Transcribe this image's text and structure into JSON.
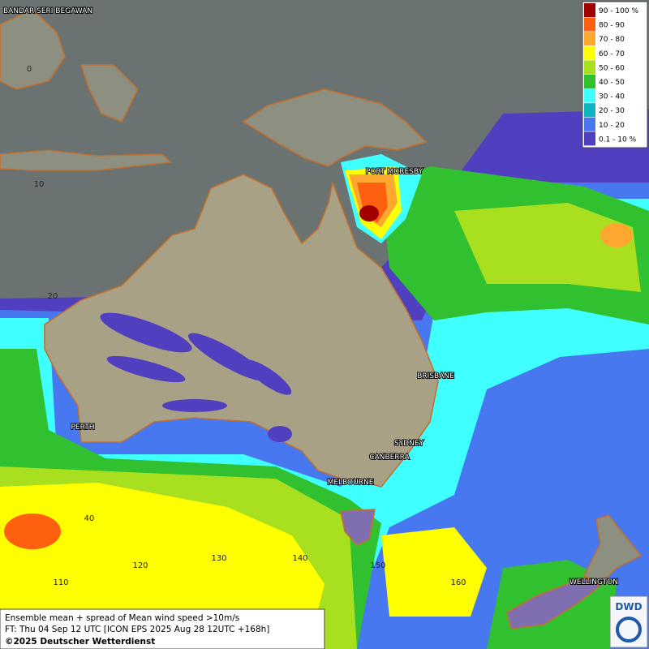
{
  "map": {
    "cities": [
      "BANDAR SERI BEGAWAN",
      "PORT MORESBY",
      "BRISBANE",
      "SYDNEY",
      "CANBERRA",
      "MELBOURNE",
      "PERTH",
      "WELLINGTON"
    ],
    "latitude_labels": [
      "0",
      "10",
      "20",
      "40"
    ],
    "longitude_labels": [
      "110",
      "120",
      "130",
      "140",
      "150",
      "160"
    ],
    "legend": [
      {
        "label": "90 - 100 %",
        "color": "#a00000"
      },
      {
        "label": "80 - 90",
        "color": "#ff6010"
      },
      {
        "label": "70 - 80",
        "color": "#ffa830"
      },
      {
        "label": "60 - 70",
        "color": "#ffff00"
      },
      {
        "label": "50 - 60",
        "color": "#a8e020"
      },
      {
        "label": "40 - 50",
        "color": "#30c030"
      },
      {
        "label": "30 - 40",
        "color": "#40ffff"
      },
      {
        "label": "20 - 30",
        "color": "#10b4c0"
      },
      {
        "label": "10 - 20",
        "color": "#4878f0"
      },
      {
        "label": "0.1 - 10 %",
        "color": "#5040c0"
      }
    ],
    "footer": [
      "Ensemble mean + spread of Mean wind speed >10m/s",
      "FT: Thu 04 Sep 12 UTC [ICON EPS 2025 Aug 28 12UTC +168h]",
      "©2025 Deutscher Wetterdienst"
    ],
    "logo": "DWD"
  }
}
